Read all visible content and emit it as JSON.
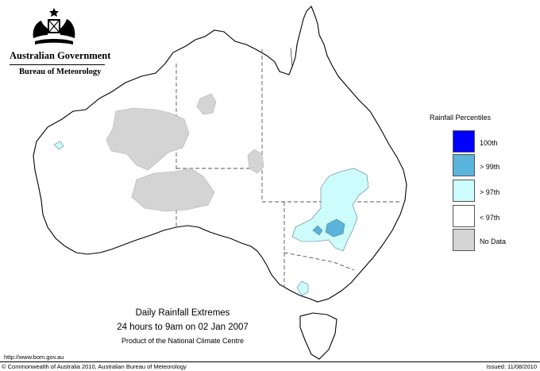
{
  "branding": {
    "government": "Australian Government",
    "bureau": "Bureau of Meteorology",
    "crest": "commonwealth-coat-of-arms"
  },
  "legend": {
    "title": "Rainfall Percentiles",
    "items": [
      {
        "label": "100th",
        "color": "#0000ff"
      },
      {
        "label": "> 99th",
        "color": "#5ab4dc"
      },
      {
        "label": "> 97th",
        "color": "#ccfcfc"
      },
      {
        "label": "< 97th",
        "color": "#ffffff"
      },
      {
        "label": "No Data",
        "color": "#d4d4d4"
      }
    ]
  },
  "caption": {
    "line1": "Daily Rainfall Extremes",
    "line2": "24 hours to 9am on 02 Jan 2007",
    "line3": "Product of the National Climate Centre"
  },
  "footer": {
    "url": "http://www.bom.gov.au",
    "copyright": "© Commonwealth of Australia 2010, Australian Bureau of Meteorology",
    "issued": "Issued: 11/08/2010"
  }
}
